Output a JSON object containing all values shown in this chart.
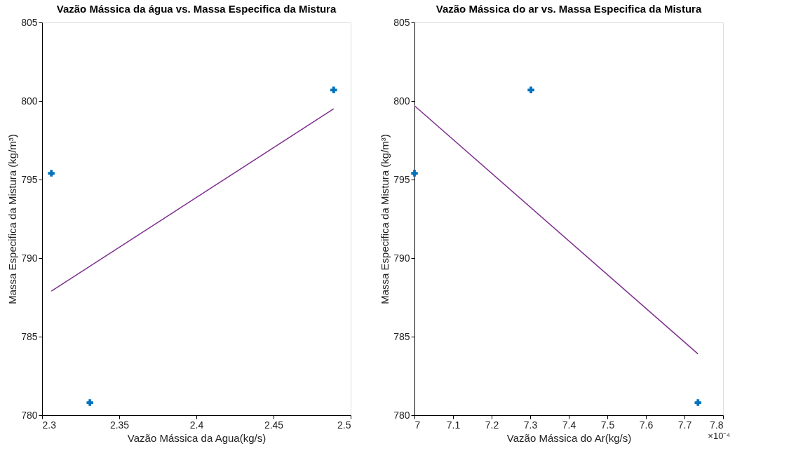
{
  "chart_data": [
    {
      "type": "scatter",
      "title": "Vazão Mássica da água vs. Massa Especifica da Mistura",
      "xlabel": "Vazão Mássica da Agua(kg/s)",
      "ylabel": "Massa Especifica da Mistura (kg/m³)",
      "xlim": [
        2.3,
        2.5
      ],
      "xticks": [
        2.3,
        2.35,
        2.4,
        2.45,
        2.5
      ],
      "ylim": [
        780,
        805
      ],
      "yticks": [
        780,
        785,
        790,
        795,
        800,
        805
      ],
      "grid": false,
      "legend": false,
      "series": [
        {
          "marker": "cross",
          "color": "#0072bd",
          "x": [
            2.306,
            2.331,
            2.489
          ],
          "values": [
            795.4,
            780.8,
            800.7
          ]
        },
        {
          "type": "line",
          "marker": "none",
          "line_style": "solid",
          "color": "#7e2f8e",
          "x": [
            2.306,
            2.489
          ],
          "values": [
            787.9,
            799.5
          ]
        }
      ]
    },
    {
      "type": "scatter",
      "title": "Vazão Mássica do ar vs. Massa Especifica da Mistura",
      "xlabel": "Vazão Mássica do Ar(kg/s)",
      "ylabel": "Massa Especifica da Mistura (kg/m³)",
      "xlim": [
        7.0,
        7.8
      ],
      "xticks": [
        7,
        7.1,
        7.2,
        7.3,
        7.4,
        7.5,
        7.6,
        7.7,
        7.8
      ],
      "ylim": [
        780,
        805
      ],
      "yticks": [
        780,
        785,
        790,
        795,
        800,
        805
      ],
      "grid": false,
      "legend": false,
      "annotations": [
        "×10⁻⁴"
      ],
      "series": [
        {
          "marker": "cross",
          "color": "#0072bd",
          "x": [
            7.0,
            7.302,
            7.735
          ],
          "values": [
            795.4,
            800.7,
            780.8
          ]
        },
        {
          "type": "line",
          "marker": "none",
          "line_style": "solid",
          "color": "#7e2f8e",
          "x": [
            7.0,
            7.735
          ],
          "values": [
            799.7,
            783.9
          ]
        }
      ]
    }
  ]
}
